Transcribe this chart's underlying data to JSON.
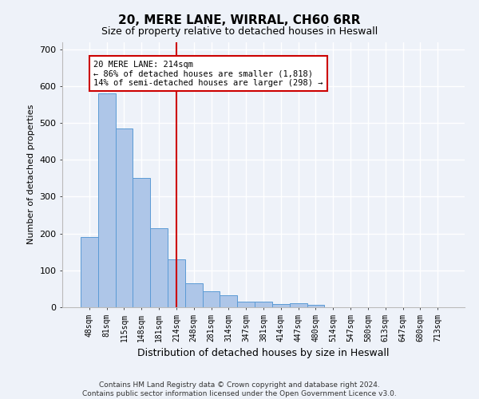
{
  "title": "20, MERE LANE, WIRRAL, CH60 6RR",
  "subtitle": "Size of property relative to detached houses in Heswall",
  "xlabel": "Distribution of detached houses by size in Heswall",
  "ylabel": "Number of detached properties",
  "categories": [
    "48sqm",
    "81sqm",
    "115sqm",
    "148sqm",
    "181sqm",
    "214sqm",
    "248sqm",
    "281sqm",
    "314sqm",
    "347sqm",
    "381sqm",
    "414sqm",
    "447sqm",
    "480sqm",
    "514sqm",
    "547sqm",
    "580sqm",
    "613sqm",
    "647sqm",
    "680sqm",
    "713sqm"
  ],
  "values": [
    190,
    580,
    485,
    350,
    215,
    130,
    65,
    43,
    32,
    15,
    15,
    8,
    10,
    6,
    0,
    0,
    0,
    0,
    0,
    0,
    0
  ],
  "bar_color": "#aec6e8",
  "bar_edgecolor": "#5b9bd5",
  "redline_x": 5.0,
  "annotation_text": "20 MERE LANE: 214sqm\n← 86% of detached houses are smaller (1,818)\n14% of semi-detached houses are larger (298) →",
  "annotation_box_edgecolor": "#cc0000",
  "ylim": [
    0,
    720
  ],
  "yticks": [
    0,
    100,
    200,
    300,
    400,
    500,
    600,
    700
  ],
  "background_color": "#eef2f9",
  "grid_color": "#ffffff",
  "footer_line1": "Contains HM Land Registry data © Crown copyright and database right 2024.",
  "footer_line2": "Contains public sector information licensed under the Open Government Licence v3.0."
}
